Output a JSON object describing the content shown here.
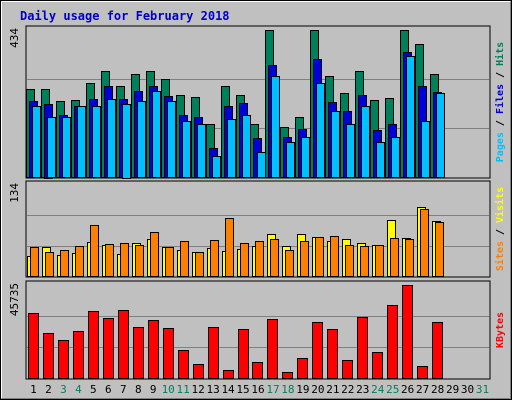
{
  "chart_data": {
    "type": "bar",
    "title": "Daily usage for February 2018",
    "colors": {
      "background": "#c0c0c0",
      "title": "#0000cc",
      "weekday_label": "#000000",
      "weekend_label": "#00805a",
      "hits": "#00805a",
      "files": "#0000d8",
      "pages": "#00c0ff",
      "visits": "#ffff00",
      "sites": "#ff8000",
      "kbytes": "#ff0000",
      "slash": "#000000"
    },
    "days": [
      "1",
      "2",
      "3",
      "4",
      "5",
      "6",
      "7",
      "8",
      "9",
      "10",
      "11",
      "12",
      "13",
      "14",
      "15",
      "16",
      "17",
      "18",
      "19",
      "20",
      "21",
      "22",
      "23",
      "24",
      "25",
      "26",
      "27",
      "28",
      "29",
      "30",
      "31"
    ],
    "weekend_days": [
      "3",
      "4",
      "10",
      "11",
      "17",
      "18",
      "24",
      "25",
      "31"
    ],
    "panels": [
      {
        "id": "hits-files-pages",
        "max_label": "434",
        "ymax": 434,
        "side_labels": [
          {
            "text": "Pages",
            "color": "#00c0ff"
          },
          {
            "text": " / ",
            "color": "#000000"
          },
          {
            "text": "Files",
            "color": "#0000d8"
          },
          {
            "text": " / ",
            "color": "#000000"
          },
          {
            "text": "Hits",
            "color": "#00805a"
          }
        ],
        "series": [
          {
            "name": "Hits",
            "color": "#00805a",
            "values": [
              259,
              259,
              224,
              226,
              277,
              312,
              270,
              304,
              312,
              289,
              241,
              235,
              156,
              268,
              241,
              156,
              434,
              148,
              178,
              434,
              297,
              247,
              312,
              226,
              233,
              434,
              393,
              304
            ]
          },
          {
            "name": "Files",
            "color": "#0000d8",
            "values": [
              224,
              217,
              183,
              209,
              231,
              270,
              231,
              254,
              270,
              239,
              183,
              178,
              86,
              209,
              219,
              114,
              331,
              118,
              141,
              348,
              221,
              194,
              241,
              139,
              157,
              369,
              270,
              251
            ]
          },
          {
            "name": "Pages",
            "color": "#00c0ff",
            "values": [
              209,
              178,
              178,
              209,
              209,
              231,
              217,
              224,
              254,
              224,
              164,
              157,
              63,
              172,
              183,
              73,
              297,
              104,
              118,
              277,
              194,
              157,
              209,
              104,
              118,
              358,
              164,
              248
            ]
          }
        ]
      },
      {
        "id": "visits-sites",
        "max_label": "134",
        "ymax": 134,
        "side_labels": [
          {
            "text": "Sites",
            "color": "#ff8000"
          },
          {
            "text": " / ",
            "color": "#000000"
          },
          {
            "text": "Visits",
            "color": "#ffff00"
          }
        ],
        "series": [
          {
            "name": "Visits",
            "color": "#ffff00",
            "values": [
              30,
              42,
              31,
              34,
              50,
              45,
              33,
              48,
              54,
              42,
              39,
              36,
              41,
              37,
              40,
              44,
              62,
              44,
              62,
              57,
              52,
              55,
              49,
              46,
              82,
              56,
              102,
              81
            ]
          },
          {
            "name": "Sites",
            "color": "#ff8000",
            "values": [
              42,
              36,
              38,
              44,
              75,
              47,
              48,
              45,
              65,
              42,
              52,
              36,
              53,
              85,
              48,
              51,
              55,
              38,
              52,
              58,
              59,
              45,
              44,
              45,
              56,
              54,
              99,
              79
            ]
          }
        ]
      },
      {
        "id": "kbytes",
        "max_label": "45735",
        "ymax": 45735,
        "side_labels": [
          {
            "text": "KBytes",
            "color": "#ff0000"
          }
        ],
        "series": [
          {
            "name": "KBytes",
            "color": "#ff0000",
            "values": [
              32000,
              22000,
              18500,
              23000,
              33000,
              29500,
              33400,
              25000,
              28500,
              24500,
              14000,
              7000,
              25300,
              4000,
              24100,
              8000,
              29000,
              3000,
              10000,
              27500,
              24300,
              8800,
              30000,
              13000,
              36000,
              45735,
              5700,
              27500
            ]
          }
        ]
      }
    ]
  }
}
